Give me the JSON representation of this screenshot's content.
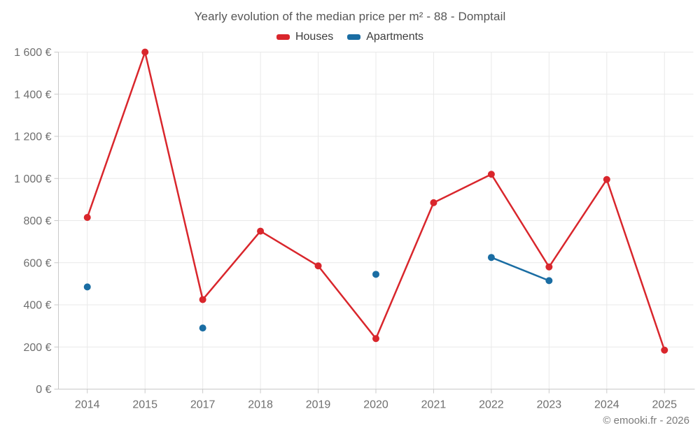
{
  "header": {
    "title": "Yearly evolution of the median price per m² - 88 - Domptail"
  },
  "legend": {
    "items": [
      {
        "label": "Houses",
        "color": "#d9262c"
      },
      {
        "label": "Apartments",
        "color": "#1a6da3"
      }
    ]
  },
  "footer": {
    "credit": "© emooki.fr - 2026"
  },
  "colors": {
    "houses": "#d9262c",
    "apartments": "#1a6da3",
    "gridline": "#e9e9e9",
    "axis_line": "#c9c9c9",
    "tick_label": "#6f6f6f",
    "background": "#ffffff"
  },
  "chart_data": {
    "type": "line",
    "title": "Yearly evolution of the median price per m² - 88 - Domptail",
    "categories": [
      "2014",
      "2015",
      "2017",
      "2018",
      "2019",
      "2020",
      "2021",
      "2022",
      "2023",
      "2024",
      "2025"
    ],
    "series": [
      {
        "name": "Houses",
        "color": "#d9262c",
        "values": [
          815,
          1600,
          425,
          750,
          585,
          240,
          885,
          1020,
          580,
          995,
          185
        ]
      },
      {
        "name": "Apartments",
        "color": "#1a6da3",
        "values": [
          485,
          null,
          290,
          null,
          null,
          545,
          null,
          625,
          515,
          null,
          null
        ]
      }
    ],
    "xlabel": "",
    "ylabel": "",
    "ylim": [
      0,
      1600
    ],
    "ytick_step": 200,
    "ytick_suffix": " €",
    "thousands_separator": " ",
    "grid": true,
    "legend_position": "top",
    "annotations": [
      "© emooki.fr - 2026"
    ]
  }
}
